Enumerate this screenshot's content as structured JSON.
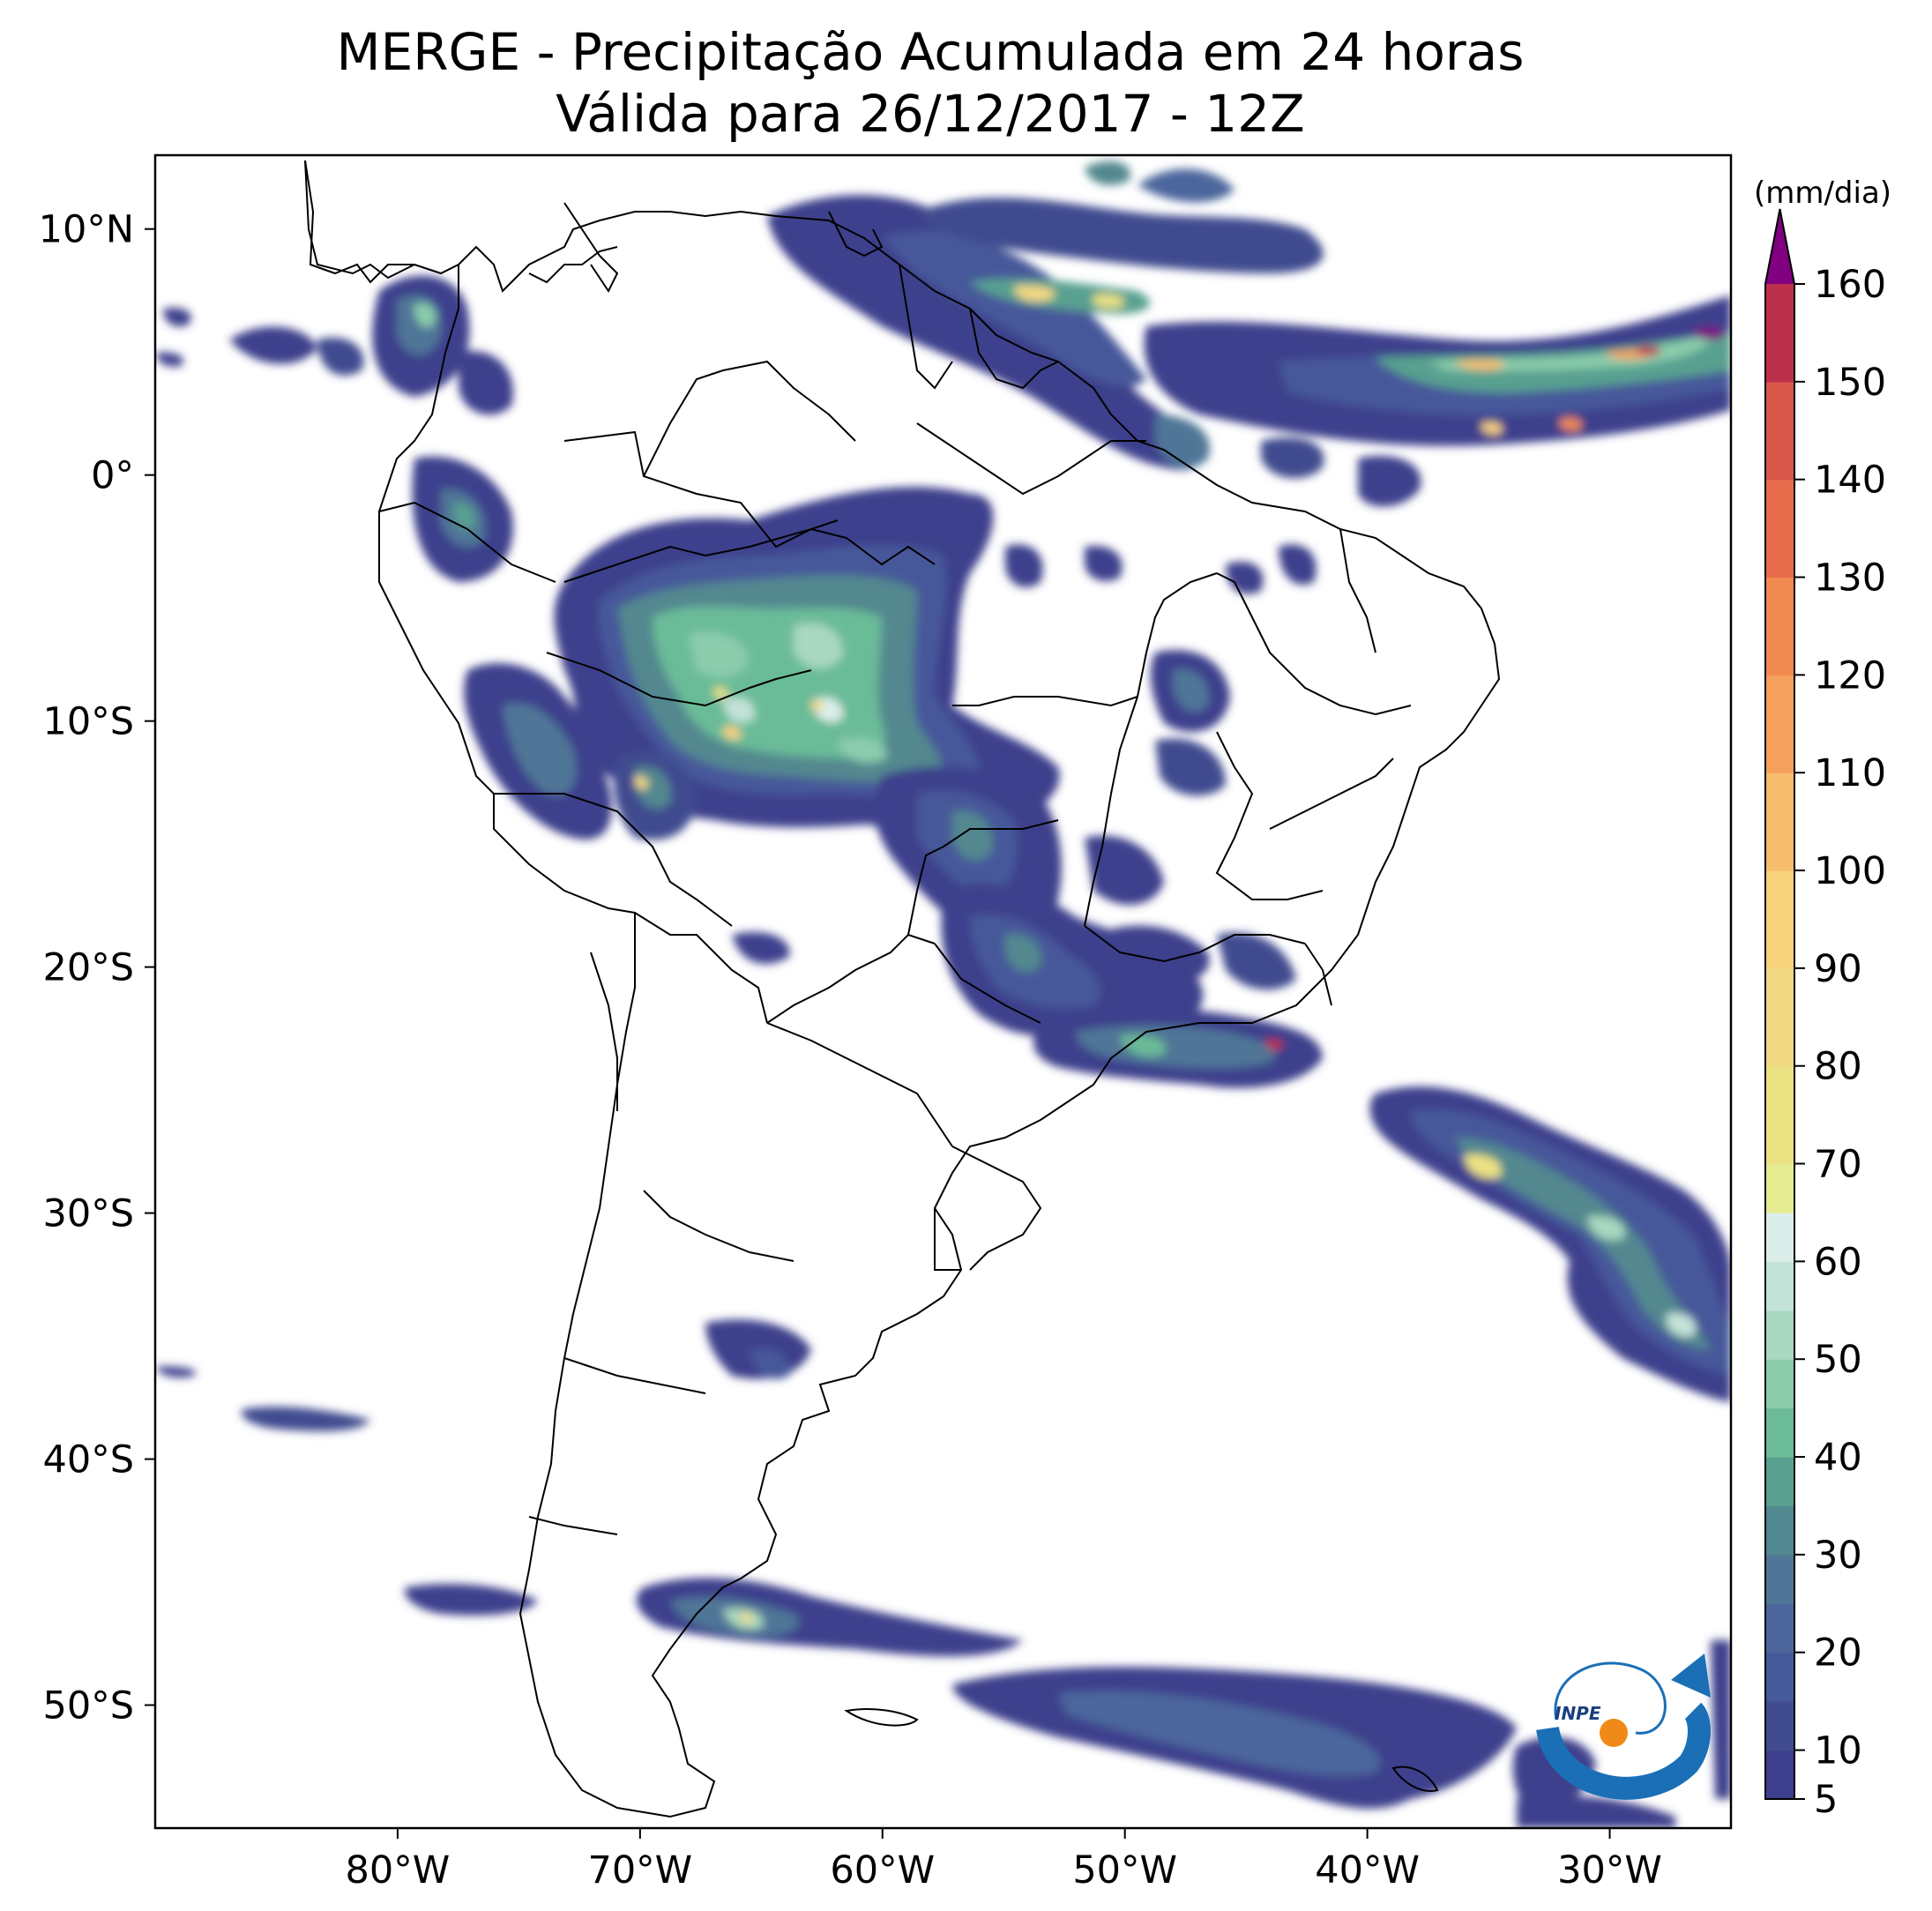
{
  "title": {
    "line1": "MERGE - Precipitação Acumulada em 24 horas",
    "line2": "Válida para 26/12/2017 - 12Z"
  },
  "map": {
    "lon_range": [
      -90,
      -25
    ],
    "lat_range": [
      -55,
      13
    ],
    "lon_ticks": [
      {
        "value": -80,
        "label": "80°W"
      },
      {
        "value": -70,
        "label": "70°W"
      },
      {
        "value": -60,
        "label": "60°W"
      },
      {
        "value": -50,
        "label": "50°W"
      },
      {
        "value": -40,
        "label": "40°W"
      },
      {
        "value": -30,
        "label": "30°W"
      }
    ],
    "lat_ticks": [
      {
        "value": 10,
        "label": "10°N"
      },
      {
        "value": 0,
        "label": "0°"
      },
      {
        "value": -10,
        "label": "10°S"
      },
      {
        "value": -20,
        "label": "20°S"
      },
      {
        "value": -30,
        "label": "30°S"
      },
      {
        "value": -40,
        "label": "40°S"
      },
      {
        "value": -50,
        "label": "50°S"
      }
    ]
  },
  "colorbar": {
    "unit": "(mm/dia)",
    "min": 5,
    "max": 160,
    "extend": "max",
    "tick_values": [
      5,
      10,
      20,
      30,
      40,
      50,
      60,
      70,
      80,
      90,
      100,
      110,
      120,
      130,
      140,
      150,
      160
    ],
    "bands": [
      {
        "from": 5,
        "to": 10,
        "color": "#3e3f8c"
      },
      {
        "from": 10,
        "to": 15,
        "color": "#414c8f"
      },
      {
        "from": 15,
        "to": 20,
        "color": "#46599a"
      },
      {
        "from": 20,
        "to": 25,
        "color": "#4c669c"
      },
      {
        "from": 25,
        "to": 30,
        "color": "#4f7697"
      },
      {
        "from": 30,
        "to": 35,
        "color": "#52888f"
      },
      {
        "from": 35,
        "to": 40,
        "color": "#59a090"
      },
      {
        "from": 40,
        "to": 45,
        "color": "#6bbb98"
      },
      {
        "from": 45,
        "to": 50,
        "color": "#8accac"
      },
      {
        "from": 50,
        "to": 55,
        "color": "#a8d8c0"
      },
      {
        "from": 55,
        "to": 60,
        "color": "#c3e3d8"
      },
      {
        "from": 60,
        "to": 65,
        "color": "#dceeea"
      },
      {
        "from": 65,
        "to": 70,
        "color": "#e6ec91"
      },
      {
        "from": 70,
        "to": 80,
        "color": "#ebe283"
      },
      {
        "from": 80,
        "to": 90,
        "color": "#f1d882"
      },
      {
        "from": 90,
        "to": 100,
        "color": "#f8d27d"
      },
      {
        "from": 100,
        "to": 110,
        "color": "#f6bd6c"
      },
      {
        "from": 110,
        "to": 120,
        "color": "#f5a05c"
      },
      {
        "from": 120,
        "to": 130,
        "color": "#f18a51"
      },
      {
        "from": 130,
        "to": 140,
        "color": "#e86d4c"
      },
      {
        "from": 140,
        "to": 150,
        "color": "#d9564b"
      },
      {
        "from": 150,
        "to": 160,
        "color": "#bc2f4b"
      }
    ],
    "over_color": "#800080"
  },
  "logo": {
    "text": "INPE"
  }
}
